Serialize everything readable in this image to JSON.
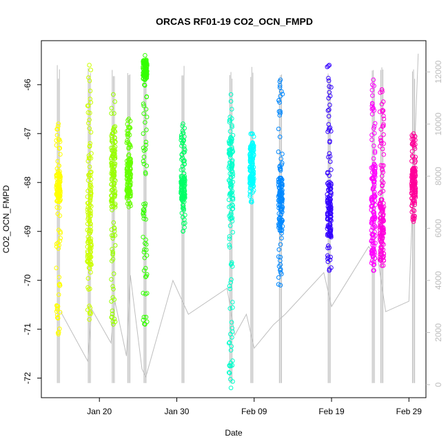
{
  "chart_data": {
    "type": "scatter",
    "title": "ORCAS RF01-19 CO2_OCN_FMPD",
    "xlabel": "Date",
    "ylabel": "CO2_OCN_FMPD",
    "x_ticks": [
      "Jan 20",
      "Jan 30",
      "Feb 09",
      "Feb 19",
      "Feb 29"
    ],
    "x_tick_days": [
      20,
      30,
      40,
      50,
      60
    ],
    "xlim_days": [
      12.5,
      62.2
    ],
    "ylim": [
      -72.4,
      -65.1
    ],
    "y_ticks": [
      -72,
      -71,
      -70,
      -69,
      -68,
      -67,
      -66
    ],
    "y2_ticks": [
      0,
      2000,
      4000,
      6000,
      8000,
      10000,
      12000
    ],
    "y2lim": [
      -500,
      13200
    ],
    "grid": false,
    "background_line_color": "#bebebe",
    "series": [
      {
        "day": 14.7,
        "color": "#ffff00",
        "ymin": -71.1,
        "ymax": -66.8,
        "dense": [
          -68.4,
          -67.8
        ]
      },
      {
        "day": 18.7,
        "color": "#ccff00",
        "ymin": -70.8,
        "ymax": -65.6,
        "dense": [
          -69.7,
          -68.0
        ]
      },
      {
        "day": 21.8,
        "color": "#99ff00",
        "ymin": -70.9,
        "ymax": -66.2,
        "dense": [
          -68.5,
          -66.9
        ]
      },
      {
        "day": 23.8,
        "color": "#66ff00",
        "ymin": -68.5,
        "ymax": -66.7,
        "dense": [
          -68.3,
          -67.6
        ]
      },
      {
        "day": 25.9,
        "color": "#33ff00",
        "ymin": -70.9,
        "ymax": -65.4,
        "dense": [
          -65.9,
          -65.5
        ]
      },
      {
        "day": 30.8,
        "color": "#00ff66",
        "ymin": -69.0,
        "ymax": -66.8,
        "dense": [
          -68.4,
          -67.9
        ]
      },
      {
        "day": 37.0,
        "color": "#00ffcc",
        "ymin": -72.2,
        "ymax": -66.2,
        "dense": [
          -68.8,
          -67.0
        ]
      },
      {
        "day": 39.7,
        "color": "#00ffff",
        "ymin": -68.4,
        "ymax": -67.0,
        "dense": [
          -68.1,
          -67.2
        ]
      },
      {
        "day": 43.4,
        "color": "#0088ff",
        "ymin": -70.1,
        "ymax": -65.9,
        "dense": [
          -69.0,
          -67.9
        ]
      },
      {
        "day": 49.7,
        "color": "#3300ff",
        "ymin": -69.8,
        "ymax": -65.6,
        "dense": [
          -69.1,
          -68.0
        ]
      },
      {
        "day": 55.4,
        "color": "#ff00ff",
        "ymin": -69.8,
        "ymax": -65.9,
        "dense": [
          -69.5,
          -67.6
        ]
      },
      {
        "day": 56.5,
        "color": "#ff00dd",
        "ymin": -69.7,
        "ymax": -66.1,
        "dense": [
          -69.6,
          -68.4
        ]
      },
      {
        "day": 60.6,
        "color": "#ff0099",
        "ymin": -68.8,
        "ymax": -67.0,
        "dense": [
          -68.3,
          -67.7
        ]
      }
    ],
    "altitude_trace": [
      [
        15.0,
        2800
      ],
      [
        18.5,
        900
      ],
      [
        19.0,
        2900
      ],
      [
        21.5,
        1600
      ],
      [
        22.0,
        3200
      ],
      [
        23.5,
        1100
      ],
      [
        24.0,
        4200
      ],
      [
        25.5,
        600
      ],
      [
        26.0,
        300
      ],
      [
        29.5,
        4000
      ],
      [
        31.5,
        2700
      ],
      [
        36.5,
        3700
      ],
      [
        37.5,
        1900
      ],
      [
        39.0,
        2700
      ],
      [
        40.0,
        1400
      ],
      [
        42.5,
        2300
      ],
      [
        44.0,
        2700
      ],
      [
        49.0,
        4300
      ],
      [
        50.0,
        3000
      ],
      [
        54.8,
        5300
      ],
      [
        56.0,
        4800
      ],
      [
        57.0,
        2800
      ],
      [
        60.0,
        3200
      ],
      [
        61.2,
        12700
      ]
    ]
  }
}
